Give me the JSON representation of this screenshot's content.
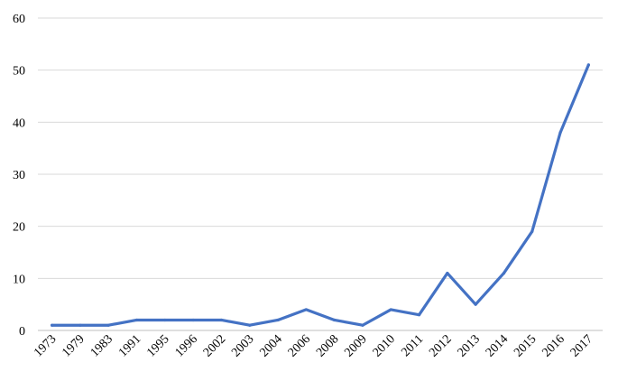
{
  "chart_data": {
    "type": "line",
    "title": "",
    "xlabel": "",
    "ylabel": "",
    "categories": [
      "1973",
      "1979",
      "1983",
      "1991",
      "1995",
      "1996",
      "2002",
      "2003",
      "2004",
      "2006",
      "2008",
      "2009",
      "2010",
      "2011",
      "2012",
      "2013",
      "2014",
      "2015",
      "2016",
      "2017"
    ],
    "series": [
      {
        "values": [
          1,
          1,
          1,
          2,
          2,
          2,
          2,
          1,
          2,
          4,
          2,
          1,
          4,
          3,
          11,
          5,
          11,
          19,
          38,
          51
        ]
      }
    ],
    "ylim": [
      0,
      60
    ],
    "yticks": [
      0,
      10,
      20,
      30,
      40,
      50,
      60
    ],
    "grid": true,
    "legend": "none",
    "colors": {
      "line": "#4472C4",
      "grid": "#D9D9D9",
      "axis": "#BFBFBF"
    }
  }
}
